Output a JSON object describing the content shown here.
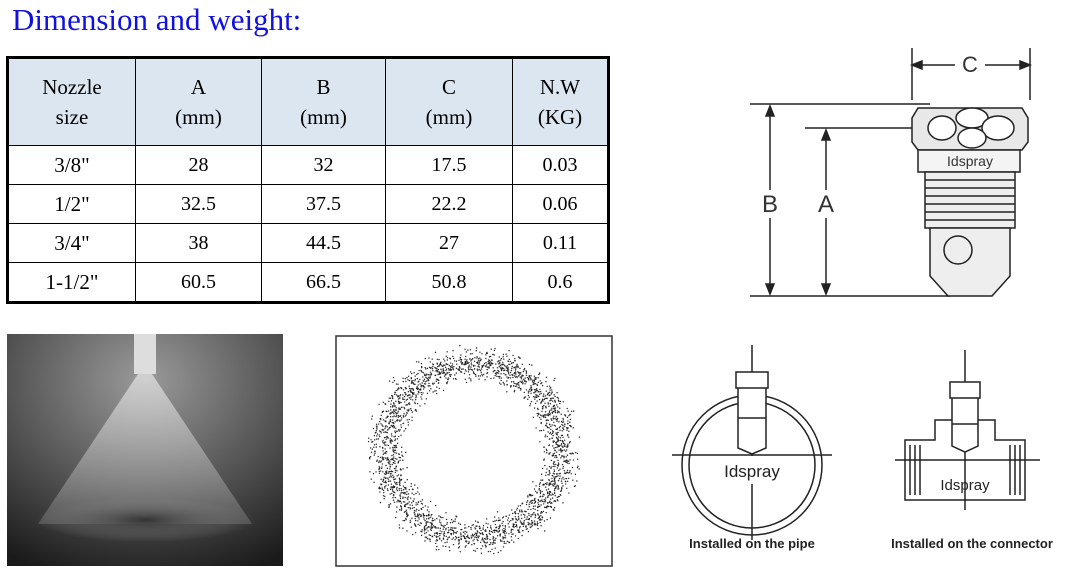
{
  "header": {
    "title": "Dimension and weight:"
  },
  "table": {
    "columns": [
      [
        "Nozzle",
        "size"
      ],
      [
        "A",
        "(mm)"
      ],
      [
        "B",
        "(mm)"
      ],
      [
        "C",
        "(mm)"
      ],
      [
        "N.W",
        "(KG)"
      ]
    ],
    "rows": [
      [
        "3/8\"",
        "28",
        "32",
        "17.5",
        "0.03"
      ],
      [
        "1/2\"",
        "32.5",
        "37.5",
        "22.2",
        "0.06"
      ],
      [
        "3/4\"",
        "38",
        "44.5",
        "27",
        "0.11"
      ],
      [
        "1-1/2\"",
        "60.5",
        "66.5",
        "50.8",
        "0.6"
      ]
    ]
  },
  "dimension_drawing": {
    "c": "C",
    "b": "B",
    "a": "A",
    "brand": "Idspray"
  },
  "installation": [
    {
      "brand": "Idspray",
      "caption": "Installed on the pipe"
    },
    {
      "brand": "Idspray",
      "caption": "Installed on the connector"
    }
  ]
}
